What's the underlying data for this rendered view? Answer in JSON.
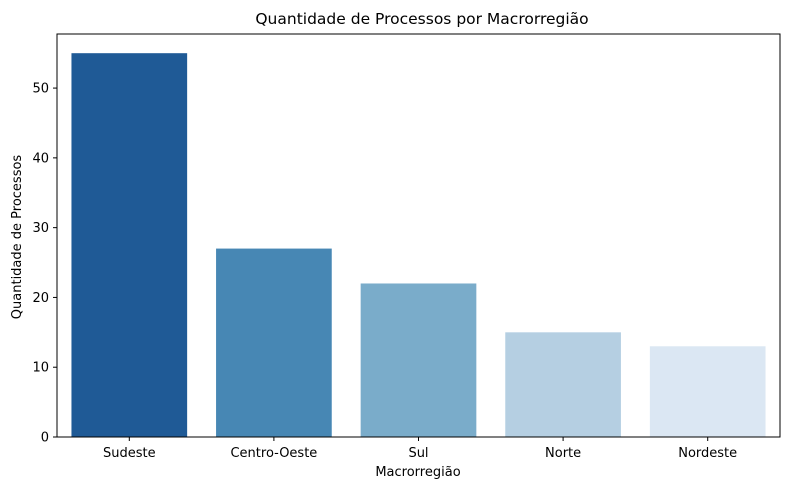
{
  "chart_data": {
    "type": "bar",
    "title": "Quantidade de Processos por Macrorregião",
    "xlabel": "Macrorregião",
    "ylabel": "Quantidade de Processos",
    "categories": [
      "Sudeste",
      "Centro-Oeste",
      "Sul",
      "Norte",
      "Nordeste"
    ],
    "values": [
      55,
      27,
      22,
      15,
      13
    ],
    "colors": [
      "#1f5a96",
      "#4787b4",
      "#7aacca",
      "#b5cfe2",
      "#dbe7f3"
    ],
    "ylim": [
      0,
      57.75
    ],
    "yticks": [
      0,
      10,
      20,
      30,
      40,
      50
    ],
    "grid": false,
    "legend": "none"
  }
}
